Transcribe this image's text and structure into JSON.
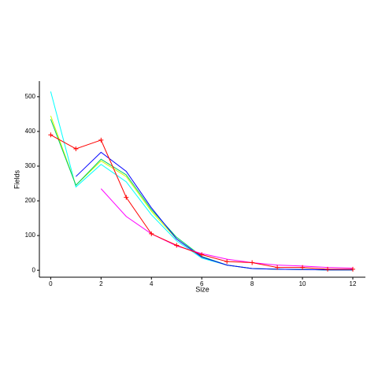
{
  "chart_data": {
    "type": "line",
    "x_label": "Size",
    "y_label": "Fields",
    "x": [
      0,
      1,
      2,
      3,
      4,
      5,
      6,
      7,
      8,
      9,
      10,
      11,
      12
    ],
    "series": [
      {
        "color": "#00ffff",
        "values": [
          515,
          240,
          305,
          255,
          160,
          85,
          35,
          15,
          5,
          3,
          2,
          1,
          1
        ]
      },
      {
        "color": "#ccff00",
        "values": [
          445,
          245,
          315,
          270,
          170,
          90,
          38,
          15,
          5,
          3,
          2,
          1,
          1
        ]
      },
      {
        "color": "#00cc66",
        "values": [
          435,
          245,
          320,
          275,
          175,
          95,
          40,
          15,
          5,
          3,
          2,
          1,
          1
        ]
      },
      {
        "color": "#0000ff",
        "values": [
          null,
          270,
          340,
          285,
          180,
          90,
          38,
          15,
          5,
          3,
          2,
          1,
          1
        ]
      },
      {
        "color": "#ff00ff",
        "values": [
          null,
          null,
          235,
          155,
          105,
          70,
          48,
          32,
          22,
          15,
          12,
          8,
          6
        ]
      },
      {
        "color": "#ff0000",
        "markers": true,
        "values": [
          390,
          350,
          375,
          210,
          105,
          72,
          45,
          25,
          22,
          8,
          8,
          3,
          3
        ]
      }
    ],
    "xlim": [
      -0.45,
      12.5
    ],
    "xticks": [
      0,
      2,
      4,
      6,
      8,
      10,
      12
    ],
    "ylim": [
      -20,
      545
    ],
    "yticks": [
      0,
      100,
      200,
      300,
      400,
      500
    ]
  }
}
